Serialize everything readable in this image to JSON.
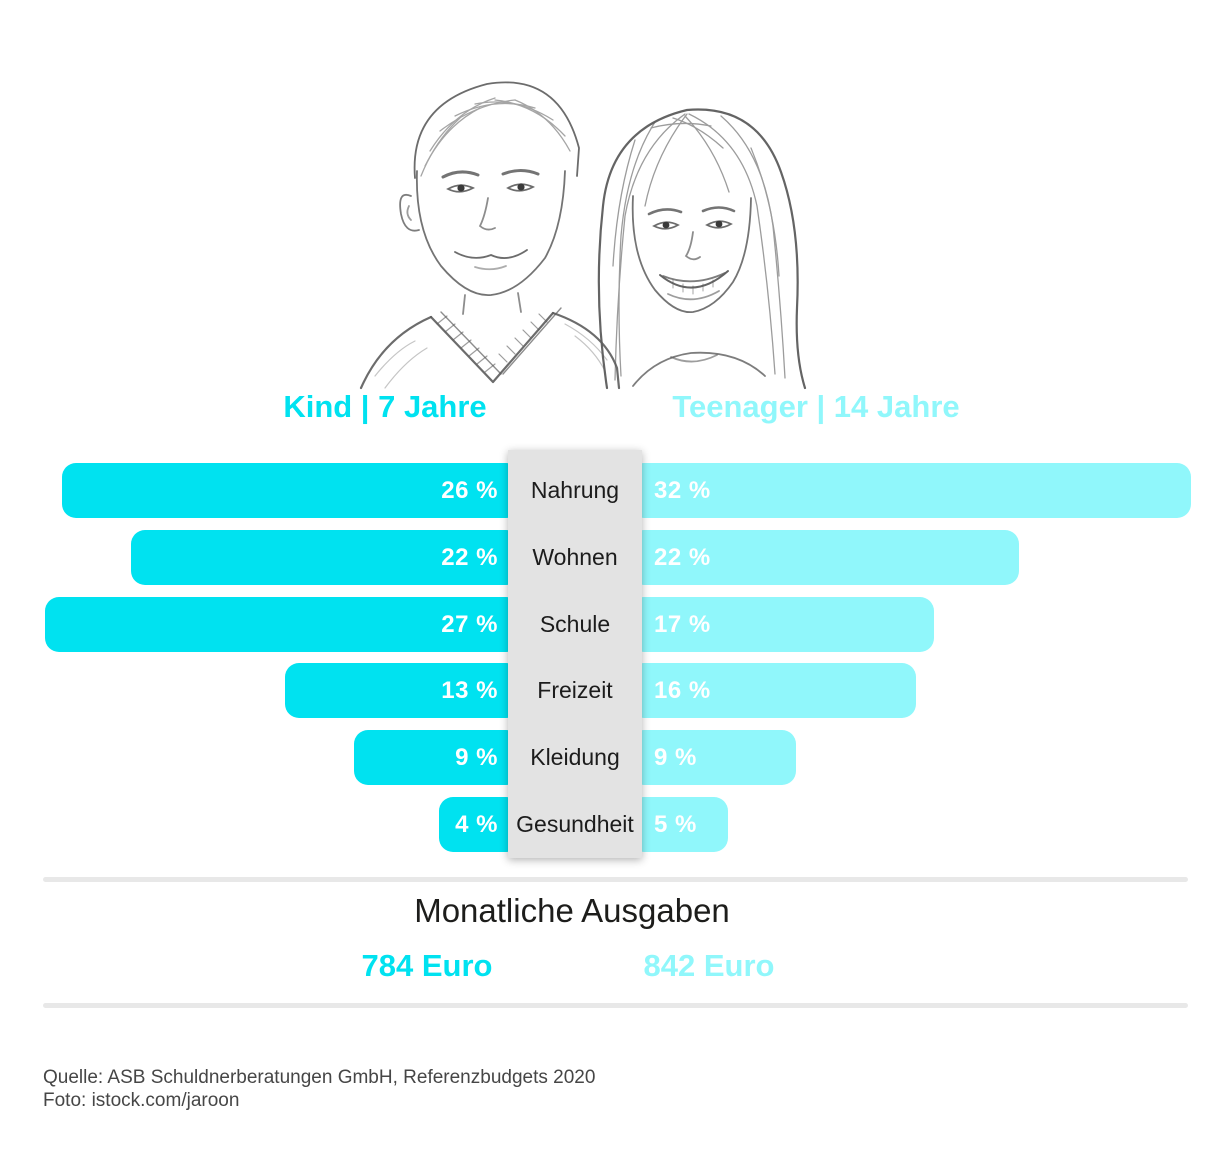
{
  "title_header": {
    "kind_label": "Kind | 7 Jahre",
    "teenager_label": "Teenager | 14 Jahre"
  },
  "chart_data": {
    "type": "bar",
    "subtype": "butterfly-comparison",
    "title": "Monatliche Ausgaben",
    "unit": "%",
    "categories": [
      "Nahrung",
      "Wohnen",
      "Schule",
      "Freizeit",
      "Kleidung",
      "Gesundheit"
    ],
    "series": [
      {
        "name": "Kind | 7 Jahre",
        "side": "left",
        "color": "#00e2f0",
        "values": [
          26,
          22,
          27,
          13,
          9,
          4
        ],
        "labels": [
          "26 %",
          "22 %",
          "27 %",
          "13 %",
          "9 %",
          "4 %"
        ]
      },
      {
        "name": "Teenager | 14 Jahre",
        "side": "right",
        "color": "#90f7fb",
        "values": [
          32,
          22,
          17,
          16,
          9,
          5
        ],
        "labels": [
          "32 %",
          "22 %",
          "17 %",
          "16 %",
          "9 %",
          "5 %"
        ]
      }
    ],
    "xlim_percent": [
      0,
      32
    ],
    "grid": false,
    "legend_position": "top-as-column-headers"
  },
  "summary": {
    "title": "Monatliche Ausgaben",
    "kind_total": "784 Euro",
    "teenager_total": "842 Euro"
  },
  "footer": {
    "source_line": "Quelle: ASB Schuldnerberatungen GmbH, Referenzbudgets 2020",
    "photo_line": "Foto: istock.com/jaroon"
  },
  "colors": {
    "kind": "#00e2f0",
    "teenager": "#90f7fb",
    "bar_label_text": "#ffffff",
    "label_panel": "#e3e3e3",
    "divider": "#e8e8e8",
    "text_dark": "#1d1d1b",
    "footer_text": "#464646"
  }
}
